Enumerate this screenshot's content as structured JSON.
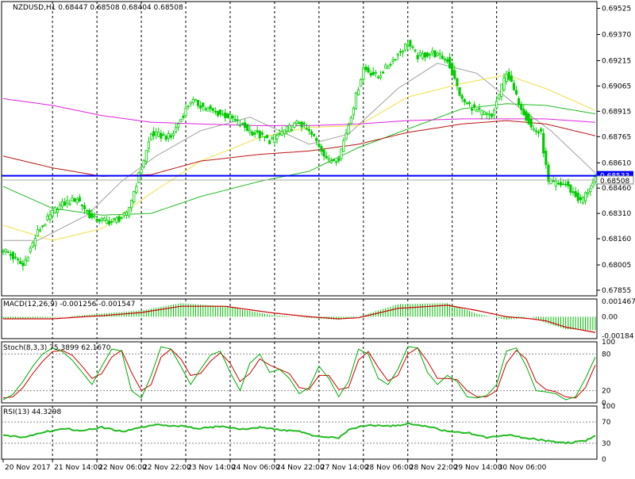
{
  "chart_data": {
    "type": "candlestick",
    "symbol_header": "NZDUSD,H1  0.68447 0.68508 0.68404 0.68508",
    "price": {
      "ylim": [
        0.67822,
        0.69565
      ],
      "y_ticks": [
        "0.69525",
        "0.69370",
        "0.69215",
        "0.69065",
        "0.68915",
        "0.68765",
        "0.68610",
        "0.68460",
        "0.68310",
        "0.68160",
        "0.68005",
        "0.67855"
      ],
      "support_level": 0.68533,
      "support_label": "0.68533",
      "last_price": 0.68508,
      "last_price_label": "0.68508",
      "candle_close_anchors": [
        [
          0,
          0.681
        ],
        [
          8,
          0.68
        ],
        [
          14,
          0.682
        ],
        [
          22,
          0.6835
        ],
        [
          30,
          0.684
        ],
        [
          36,
          0.6828
        ],
        [
          44,
          0.6826
        ],
        [
          50,
          0.683
        ],
        [
          56,
          0.6858
        ],
        [
          60,
          0.6878
        ],
        [
          68,
          0.6876
        ],
        [
          76,
          0.6898
        ],
        [
          84,
          0.6892
        ],
        [
          92,
          0.6888
        ],
        [
          100,
          0.688
        ],
        [
          108,
          0.6874
        ],
        [
          114,
          0.688
        ],
        [
          120,
          0.6885
        ],
        [
          126,
          0.6876
        ],
        [
          132,
          0.6862
        ],
        [
          136,
          0.6864
        ],
        [
          140,
          0.6884
        ],
        [
          146,
          0.6917
        ],
        [
          152,
          0.6912
        ],
        [
          158,
          0.6922
        ],
        [
          164,
          0.6932
        ],
        [
          168,
          0.6924
        ],
        [
          174,
          0.6926
        ],
        [
          180,
          0.6922
        ],
        [
          186,
          0.6898
        ],
        [
          192,
          0.6892
        ],
        [
          198,
          0.6888
        ],
        [
          204,
          0.6915
        ],
        [
          208,
          0.69
        ],
        [
          214,
          0.6882
        ],
        [
          218,
          0.6878
        ],
        [
          221,
          0.6849
        ],
        [
          228,
          0.6848
        ],
        [
          234,
          0.6838
        ],
        [
          240,
          0.68508
        ]
      ],
      "moving_averages": [
        {
          "name": "gray",
          "color": "#a0a0a0",
          "anchors": [
            [
              0,
              0.6815
            ],
            [
              14,
              0.6815
            ],
            [
              34,
              0.683
            ],
            [
              48,
              0.685
            ],
            [
              62,
              0.6865
            ],
            [
              80,
              0.688
            ],
            [
              100,
              0.6888
            ],
            [
              124,
              0.6872
            ],
            [
              140,
              0.6878
            ],
            [
              160,
              0.6905
            ],
            [
              176,
              0.692
            ],
            [
              192,
              0.6914
            ],
            [
              208,
              0.6895
            ],
            [
              222,
              0.688
            ],
            [
              240,
              0.6855
            ]
          ]
        },
        {
          "name": "yellow",
          "color": "#f0e040",
          "anchors": [
            [
              0,
              0.6824
            ],
            [
              20,
              0.6815
            ],
            [
              40,
              0.6822
            ],
            [
              60,
              0.6843
            ],
            [
              80,
              0.6862
            ],
            [
              104,
              0.6876
            ],
            [
              124,
              0.6882
            ],
            [
              144,
              0.6883
            ],
            [
              164,
              0.69
            ],
            [
              186,
              0.6908
            ],
            [
              204,
              0.6913
            ],
            [
              220,
              0.6905
            ],
            [
              240,
              0.6892
            ]
          ]
        },
        {
          "name": "green",
          "color": "#22bb22",
          "anchors": [
            [
              0,
              0.6847
            ],
            [
              20,
              0.6834
            ],
            [
              40,
              0.683
            ],
            [
              60,
              0.6831
            ],
            [
              80,
              0.6841
            ],
            [
              104,
              0.685
            ],
            [
              124,
              0.6856
            ],
            [
              144,
              0.687
            ],
            [
              164,
              0.6881
            ],
            [
              186,
              0.6893
            ],
            [
              204,
              0.6896
            ],
            [
              220,
              0.6895
            ],
            [
              240,
              0.689
            ]
          ]
        },
        {
          "name": "red",
          "color": "#bb1111",
          "anchors": [
            [
              0,
              0.6865
            ],
            [
              20,
              0.6858
            ],
            [
              40,
              0.6853
            ],
            [
              60,
              0.6854
            ],
            [
              80,
              0.6862
            ],
            [
              104,
              0.6866
            ],
            [
              124,
              0.6868
            ],
            [
              144,
              0.6872
            ],
            [
              164,
              0.6879
            ],
            [
              186,
              0.6884
            ],
            [
              204,
              0.6886
            ],
            [
              220,
              0.6884
            ],
            [
              240,
              0.6877
            ]
          ]
        },
        {
          "name": "magenta",
          "color": "#dd22dd",
          "anchors": [
            [
              0,
              0.6899
            ],
            [
              20,
              0.6895
            ],
            [
              40,
              0.6889
            ],
            [
              60,
              0.6885
            ],
            [
              80,
              0.6884
            ],
            [
              104,
              0.6883
            ],
            [
              124,
              0.6883
            ],
            [
              144,
              0.6884
            ],
            [
              164,
              0.6886
            ],
            [
              186,
              0.6887
            ],
            [
              204,
              0.6887
            ],
            [
              220,
              0.6887
            ],
            [
              240,
              0.6885
            ]
          ]
        }
      ]
    },
    "macd": {
      "label": "MACD(12,26,9) -0.001256 -0.001547",
      "ylim": [
        -0.0021,
        0.0017
      ],
      "y_ticks": [
        "0.001467",
        "0.00",
        "-0.00184"
      ],
      "histogram_anchors": [
        [
          0,
          -0.0002
        ],
        [
          20,
          -0.0001
        ],
        [
          40,
          0.0003
        ],
        [
          56,
          0.0006
        ],
        [
          72,
          0.0013
        ],
        [
          90,
          0.001
        ],
        [
          108,
          0.0002
        ],
        [
          124,
          -0.0001
        ],
        [
          136,
          -0.0003
        ],
        [
          144,
          0.0
        ],
        [
          160,
          0.0012
        ],
        [
          180,
          0.0013
        ],
        [
          192,
          0.0003
        ],
        [
          204,
          -0.0003
        ],
        [
          214,
          0.0
        ],
        [
          220,
          -0.0006
        ],
        [
          228,
          -0.0012
        ],
        [
          240,
          -0.0013
        ]
      ],
      "signal_anchors": [
        [
          0,
          -0.0002
        ],
        [
          20,
          -0.0002
        ],
        [
          40,
          0.0001
        ],
        [
          56,
          0.0004
        ],
        [
          72,
          0.001
        ],
        [
          90,
          0.001
        ],
        [
          108,
          0.0004
        ],
        [
          124,
          0.0
        ],
        [
          136,
          -0.0002
        ],
        [
          144,
          -0.0001
        ],
        [
          160,
          0.0008
        ],
        [
          180,
          0.0011
        ],
        [
          192,
          0.0006
        ],
        [
          204,
          0.0
        ],
        [
          214,
          -0.0002
        ],
        [
          220,
          -0.0004
        ],
        [
          228,
          -0.001
        ],
        [
          240,
          -0.0015
        ]
      ]
    },
    "stochastic": {
      "label": "Stoch(8,3,3) 75.3899 62.1670",
      "ylim": [
        0,
        100
      ],
      "y_ticks": [
        "100",
        "80",
        "20",
        "0"
      ],
      "main_anchors": [
        [
          0,
          5
        ],
        [
          4,
          14
        ],
        [
          8,
          35
        ],
        [
          12,
          60
        ],
        [
          16,
          80
        ],
        [
          20,
          90
        ],
        [
          24,
          84
        ],
        [
          28,
          70
        ],
        [
          32,
          50
        ],
        [
          36,
          30
        ],
        [
          40,
          60
        ],
        [
          44,
          88
        ],
        [
          48,
          85
        ],
        [
          52,
          20
        ],
        [
          56,
          8
        ],
        [
          60,
          45
        ],
        [
          64,
          92
        ],
        [
          68,
          88
        ],
        [
          72,
          60
        ],
        [
          76,
          30
        ],
        [
          80,
          55
        ],
        [
          84,
          78
        ],
        [
          88,
          85
        ],
        [
          92,
          50
        ],
        [
          96,
          20
        ],
        [
          100,
          65
        ],
        [
          104,
          80
        ],
        [
          108,
          50
        ],
        [
          112,
          55
        ],
        [
          116,
          40
        ],
        [
          120,
          15
        ],
        [
          124,
          25
        ],
        [
          128,
          60
        ],
        [
          132,
          40
        ],
        [
          136,
          10
        ],
        [
          140,
          35
        ],
        [
          144,
          88
        ],
        [
          148,
          80
        ],
        [
          152,
          40
        ],
        [
          156,
          30
        ],
        [
          160,
          55
        ],
        [
          164,
          92
        ],
        [
          168,
          90
        ],
        [
          172,
          50
        ],
        [
          176,
          30
        ],
        [
          180,
          45
        ],
        [
          184,
          35
        ],
        [
          188,
          10
        ],
        [
          192,
          8
        ],
        [
          196,
          12
        ],
        [
          200,
          30
        ],
        [
          204,
          85
        ],
        [
          208,
          90
        ],
        [
          212,
          60
        ],
        [
          216,
          20
        ],
        [
          220,
          18
        ],
        [
          224,
          15
        ],
        [
          228,
          5
        ],
        [
          232,
          10
        ],
        [
          236,
          40
        ],
        [
          240,
          75
        ]
      ],
      "signal_anchors": [
        [
          0,
          8
        ],
        [
          4,
          10
        ],
        [
          8,
          25
        ],
        [
          12,
          48
        ],
        [
          16,
          68
        ],
        [
          20,
          84
        ],
        [
          24,
          86
        ],
        [
          28,
          78
        ],
        [
          32,
          60
        ],
        [
          36,
          40
        ],
        [
          40,
          48
        ],
        [
          44,
          75
        ],
        [
          48,
          86
        ],
        [
          52,
          50
        ],
        [
          56,
          20
        ],
        [
          60,
          30
        ],
        [
          64,
          75
        ],
        [
          68,
          88
        ],
        [
          72,
          72
        ],
        [
          76,
          45
        ],
        [
          80,
          48
        ],
        [
          84,
          68
        ],
        [
          88,
          82
        ],
        [
          92,
          65
        ],
        [
          96,
          35
        ],
        [
          100,
          48
        ],
        [
          104,
          72
        ],
        [
          108,
          62
        ],
        [
          112,
          55
        ],
        [
          116,
          48
        ],
        [
          120,
          25
        ],
        [
          124,
          22
        ],
        [
          128,
          45
        ],
        [
          132,
          45
        ],
        [
          136,
          22
        ],
        [
          140,
          25
        ],
        [
          144,
          70
        ],
        [
          148,
          84
        ],
        [
          152,
          58
        ],
        [
          156,
          36
        ],
        [
          160,
          45
        ],
        [
          164,
          80
        ],
        [
          168,
          90
        ],
        [
          172,
          68
        ],
        [
          176,
          40
        ],
        [
          180,
          40
        ],
        [
          184,
          38
        ],
        [
          188,
          20
        ],
        [
          192,
          10
        ],
        [
          196,
          10
        ],
        [
          200,
          20
        ],
        [
          204,
          65
        ],
        [
          208,
          86
        ],
        [
          212,
          72
        ],
        [
          216,
          35
        ],
        [
          220,
          22
        ],
        [
          224,
          18
        ],
        [
          228,
          10
        ],
        [
          232,
          8
        ],
        [
          236,
          25
        ],
        [
          240,
          62
        ]
      ]
    },
    "rsi": {
      "label": "RSI(13) 44.3298",
      "ylim": [
        0,
        100
      ],
      "y_ticks": [
        "100",
        "70",
        "30",
        "0"
      ],
      "anchors": [
        [
          0,
          44
        ],
        [
          8,
          42
        ],
        [
          16,
          50
        ],
        [
          24,
          58
        ],
        [
          32,
          54
        ],
        [
          40,
          60
        ],
        [
          48,
          52
        ],
        [
          56,
          60
        ],
        [
          64,
          65
        ],
        [
          72,
          62
        ],
        [
          80,
          58
        ],
        [
          88,
          62
        ],
        [
          96,
          56
        ],
        [
          104,
          60
        ],
        [
          112,
          55
        ],
        [
          120,
          52
        ],
        [
          128,
          42
        ],
        [
          136,
          40
        ],
        [
          140,
          55
        ],
        [
          148,
          65
        ],
        [
          156,
          62
        ],
        [
          164,
          66
        ],
        [
          172,
          62
        ],
        [
          180,
          52
        ],
        [
          188,
          50
        ],
        [
          196,
          40
        ],
        [
          204,
          46
        ],
        [
          212,
          40
        ],
        [
          220,
          35
        ],
        [
          228,
          30
        ],
        [
          236,
          35
        ],
        [
          240,
          44
        ]
      ]
    },
    "x_labels": [
      "20 Nov 2017",
      "21 Nov 14:00",
      "22 Nov 06:00",
      "22 Nov 22:00",
      "23 Nov 14:00",
      "24 Nov 06:00",
      "24 Nov 22:00",
      "27 Nov 14:00",
      "28 Nov 06:00",
      "28 Nov 22:00",
      "29 Nov 14:00",
      "30 Nov 06:00"
    ],
    "x_label_indices": [
      0,
      20,
      38,
      56,
      74,
      92,
      110,
      128,
      146,
      164,
      182,
      200
    ],
    "bar_count": 241
  },
  "colors": {
    "bull": "#00cc00",
    "bear": "#00cc00",
    "support": "#0000ff",
    "macd_hist": "#00bb00",
    "macd_signal": "#cc0000",
    "stoch_main": "#00aa00",
    "stoch_signal": "#cc0000",
    "rsi": "#22bb22"
  }
}
